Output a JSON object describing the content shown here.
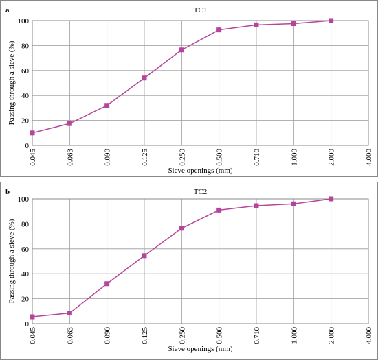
{
  "chart_data": [
    {
      "type": "line",
      "panel_label": "a",
      "title": "TC1",
      "xlabel": "Sieve openings (mm)",
      "ylabel": "Passing through a sieve (%)",
      "categories": [
        "0.045",
        "0.063",
        "0.090",
        "0.125",
        "0.250",
        "0.500",
        "0.710",
        "1.000",
        "2.000",
        "4.000"
      ],
      "values": [
        10,
        17.5,
        32,
        54,
        76.5,
        92.5,
        96.5,
        97.5,
        100,
        null
      ],
      "color": "#b5459b",
      "ylim": [
        0,
        100
      ],
      "yticks": [
        0,
        20,
        40,
        60,
        80,
        100
      ],
      "grid": true
    },
    {
      "type": "line",
      "panel_label": "b",
      "title": "TC2",
      "xlabel": "Sieve openings (mm)",
      "ylabel": "Passing through a sieve (%)",
      "categories": [
        "0.045",
        "0.063",
        "0.090",
        "0.125",
        "0.250",
        "0.500",
        "0.710",
        "1.000",
        "2.000",
        "4.000"
      ],
      "values": [
        5.5,
        8.5,
        32,
        54.5,
        76.5,
        91,
        94.5,
        96,
        100,
        null
      ],
      "color": "#b5459b",
      "ylim": [
        0,
        100
      ],
      "yticks": [
        0,
        20,
        40,
        60,
        80,
        100
      ],
      "grid": true
    }
  ]
}
